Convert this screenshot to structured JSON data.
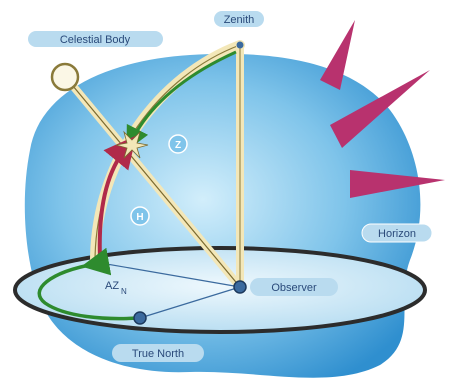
{
  "labels": {
    "celestial_body": "Celestial Body",
    "zenith": "Zenith",
    "horizon": "Horizon",
    "observer": "Observer",
    "true_north": "True North",
    "zenith_angle": "Z",
    "altitude": "H",
    "azimuth": "AZ",
    "azimuth_subscript": "N"
  },
  "colors": {
    "background_blob_light": "#aee0f5",
    "background_blob_dark": "#3a9bd5",
    "ray_color": "#b8326e",
    "horizon_disc": "#d8eef9",
    "horizon_rim": "#2c2c2c",
    "arc_tan": "#f3e7b8",
    "green_arc": "#2e8b2e",
    "red_arc": "#b02a4a",
    "point_color": "#3b6a9e",
    "label_bg": "#b9dbef",
    "label_text": "#2a4a7a"
  },
  "icons": {
    "celestial_body": "circle-icon",
    "observer": "dot-icon",
    "true_north": "dot-icon"
  }
}
